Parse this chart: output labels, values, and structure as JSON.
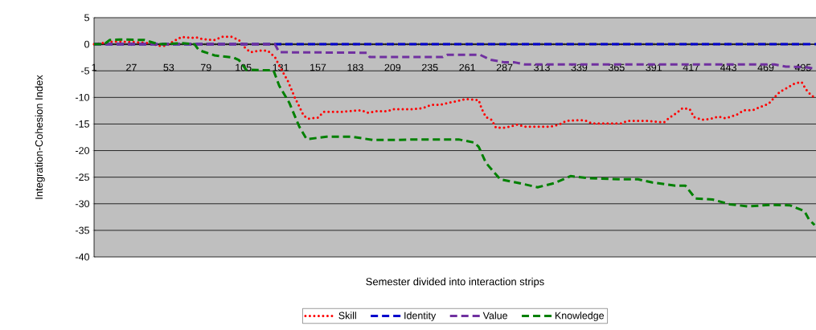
{
  "chart_data": {
    "type": "line",
    "xlabel": "Semester divided into interaction strips",
    "ylabel": "Integration-Cohesion Index",
    "xlim": [
      1,
      504
    ],
    "xticks": [
      1,
      27,
      53,
      79,
      105,
      131,
      157,
      183,
      209,
      235,
      261,
      287,
      313,
      339,
      365,
      391,
      417,
      443,
      469,
      495
    ],
    "ylim": [
      -40,
      5
    ],
    "yticks": [
      -40,
      -35,
      -30,
      -25,
      -20,
      -15,
      -10,
      -5,
      0,
      5
    ],
    "grid": "y",
    "legend": "bottom",
    "marker": "none",
    "series": [
      {
        "name": "Skill",
        "color": "#ff0000",
        "line_style": "dotted",
        "x": [
          1,
          8,
          14,
          20,
          30,
          40,
          46,
          51,
          56,
          62,
          68,
          72,
          76,
          80,
          85,
          90,
          97,
          102,
          106,
          110,
          116,
          122,
          127,
          130,
          136,
          141,
          144,
          147,
          150,
          157,
          161,
          168,
          174,
          187,
          192,
          198,
          205,
          210,
          224,
          230,
          236,
          242,
          248,
          254,
          260,
          269,
          271,
          274,
          278,
          281,
          286,
          291,
          296,
          301,
          312,
          319,
          325,
          330,
          336,
          343,
          348,
          354,
          368,
          373,
          386,
          398,
          402,
          407,
          411,
          416,
          419,
          425,
          431,
          436,
          441,
          445,
          449,
          454,
          460,
          465,
          471,
          475,
          479,
          484,
          489,
          494,
          497,
          501,
          504
        ],
        "values": [
          0,
          0.3,
          0.5,
          0.5,
          0.4,
          0.2,
          -0.3,
          -0.3,
          0.5,
          1.4,
          1.2,
          1.3,
          1.0,
          0.9,
          0.8,
          1.4,
          1.4,
          0.8,
          -0.6,
          -1.5,
          -1.2,
          -1.2,
          -2.4,
          -4.0,
          -6.9,
          -10.1,
          -11.7,
          -13.4,
          -14.0,
          -13.8,
          -12.7,
          -12.7,
          -12.7,
          -12.4,
          -12.9,
          -12.6,
          -12.6,
          -12.2,
          -12.2,
          -12.0,
          -11.4,
          -11.4,
          -11.0,
          -10.7,
          -10.3,
          -10.5,
          -12.1,
          -13.7,
          -14.2,
          -15.7,
          -15.7,
          -15.5,
          -15.1,
          -15.5,
          -15.5,
          -15.5,
          -15.1,
          -14.4,
          -14.3,
          -14.3,
          -14.9,
          -14.9,
          -14.9,
          -14.4,
          -14.4,
          -14.7,
          -13.8,
          -12.9,
          -12.0,
          -12.2,
          -13.7,
          -14.2,
          -14.0,
          -13.6,
          -13.9,
          -13.6,
          -13.2,
          -12.4,
          -12.4,
          -11.8,
          -11.2,
          -10.0,
          -8.9,
          -8.2,
          -7.4,
          -7.1,
          -8.5,
          -9.7,
          -10.0
        ]
      },
      {
        "name": "Identity",
        "color": "#0000cc",
        "line_style": "dashed",
        "x": [
          1,
          504
        ],
        "values": [
          0,
          0
        ]
      },
      {
        "name": "Value",
        "color": "#7030a0",
        "line_style": "dashed",
        "x": [
          1,
          127,
          130,
          191,
          193,
          244,
          247,
          270,
          277,
          287,
          294,
          301,
          475,
          483,
          496,
          504
        ],
        "values": [
          0,
          0,
          -1.5,
          -1.6,
          -2.4,
          -2.4,
          -2.0,
          -2.0,
          -2.9,
          -3.4,
          -3.4,
          -3.8,
          -3.8,
          -4.2,
          -4.3,
          -4.6
        ]
      },
      {
        "name": "Knowledge",
        "color": "#008000",
        "line_style": "dashed",
        "x": [
          1,
          8,
          12,
          19,
          36,
          46,
          62,
          71,
          74,
          85,
          98,
          102,
          107,
          122,
          126,
          130,
          137,
          144,
          149,
          151,
          163,
          181,
          195,
          210,
          225,
          255,
          266,
          269,
          274,
          284,
          297,
          310,
          322,
          333,
          346,
          368,
          380,
          390,
          406,
          413,
          420,
          432,
          444,
          457,
          472,
          486,
          496,
          499,
          503
        ],
        "values": [
          0,
          0,
          0.8,
          0.9,
          0.8,
          0,
          0.2,
          0,
          -1.1,
          -2.1,
          -2.5,
          -3.0,
          -4.8,
          -4.9,
          -4.9,
          -7.8,
          -11.0,
          -15.5,
          -17.8,
          -17.8,
          -17.4,
          -17.4,
          -18.0,
          -18.0,
          -17.9,
          -17.9,
          -18.5,
          -19.3,
          -22.3,
          -25.4,
          -26.1,
          -26.9,
          -26.1,
          -24.8,
          -25.2,
          -25.4,
          -25.4,
          -26.0,
          -26.6,
          -26.6,
          -29.0,
          -29.2,
          -30.1,
          -30.5,
          -30.2,
          -30.3,
          -31.4,
          -32.9,
          -34.0
        ]
      }
    ]
  }
}
